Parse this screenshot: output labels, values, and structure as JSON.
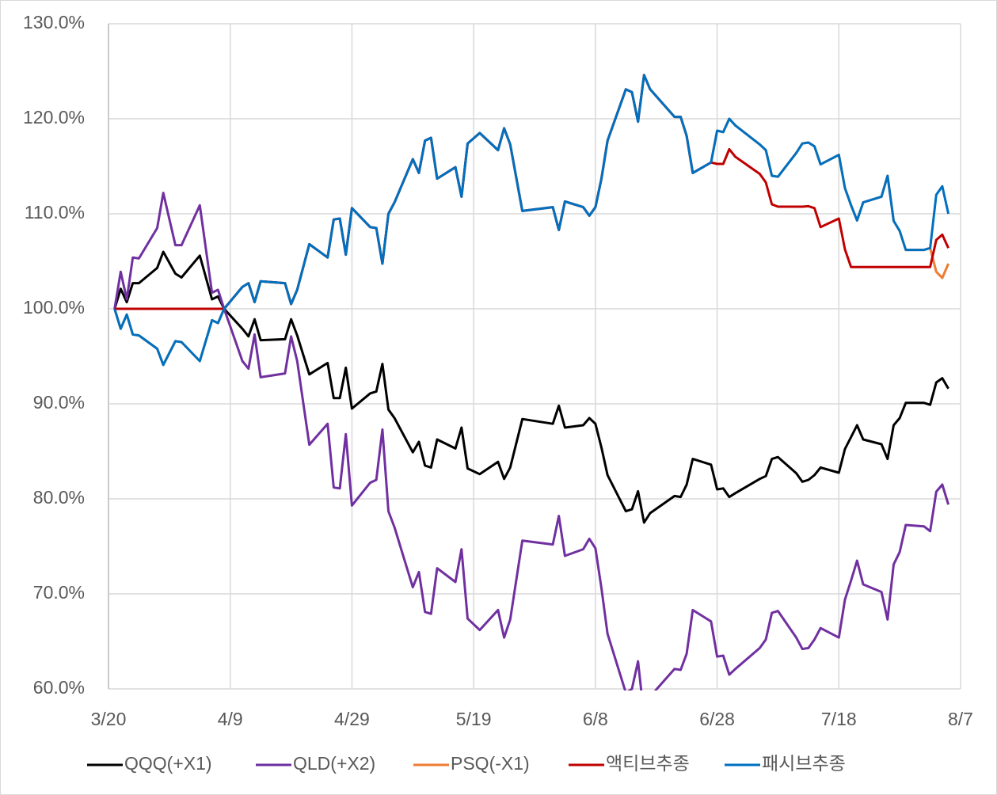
{
  "chart_data": {
    "type": "line",
    "x": [
      1,
      2,
      3,
      4,
      5,
      8,
      9,
      11,
      12,
      15,
      17,
      18,
      19,
      22,
      23,
      24,
      25,
      29,
      30,
      31,
      33,
      36,
      37,
      38,
      39,
      40,
      43,
      44,
      45,
      46,
      47,
      50,
      51,
      52,
      53,
      54,
      57,
      58,
      59,
      61,
      64,
      65,
      66,
      68,
      73,
      74,
      75,
      78,
      79,
      80,
      81,
      82,
      85,
      86,
      87,
      88,
      89,
      93,
      94,
      95,
      96,
      99,
      100,
      101,
      102,
      103,
      107,
      108,
      109,
      110,
      113,
      114,
      115,
      116,
      117,
      120,
      121,
      122,
      123,
      124,
      127,
      128,
      129,
      130,
      131,
      134,
      135,
      136,
      137,
      138
    ],
    "xlim": [
      0,
      140
    ],
    "xticks": [
      {
        "value": 0,
        "label": "3/20"
      },
      {
        "value": 20,
        "label": "4/9"
      },
      {
        "value": 40,
        "label": "4/29"
      },
      {
        "value": 60,
        "label": "5/19"
      },
      {
        "value": 80,
        "label": "6/8"
      },
      {
        "value": 100,
        "label": "6/28"
      },
      {
        "value": 120,
        "label": "7/18"
      },
      {
        "value": 140,
        "label": "8/7"
      }
    ],
    "ylim": [
      60,
      130
    ],
    "yticks": [
      {
        "value": 60,
        "label": "60.0%"
      },
      {
        "value": 70,
        "label": "70.0%"
      },
      {
        "value": 80,
        "label": "80.0%"
      },
      {
        "value": 90,
        "label": "90.0%"
      },
      {
        "value": 100,
        "label": "100.0%"
      },
      {
        "value": 110,
        "label": "110.0%"
      },
      {
        "value": 120,
        "label": "120.0%"
      },
      {
        "value": 130,
        "label": "130.0%"
      }
    ],
    "grid": true,
    "legend": "bottom",
    "series": [
      {
        "name": "QQQ(+X1)",
        "color": "#000000",
        "values": [
          100,
          102.1,
          100.7,
          102.7,
          102.7,
          104.3,
          106,
          103.7,
          103.3,
          105.6,
          101,
          101.3,
          100,
          97.9,
          97.1,
          98.9,
          96.7,
          96.8,
          98.9,
          97.2,
          93.1,
          94.3,
          90.6,
          90.6,
          93.8,
          89.5,
          91.1,
          91.3,
          94.2,
          89.4,
          88.5,
          84.9,
          86,
          83.5,
          83.3,
          86.25,
          85.3,
          87.5,
          83.2,
          82.6,
          83.9,
          82.1,
          83.3,
          88.4,
          87.9,
          89.8,
          87.5,
          87.75,
          88.5,
          87.9,
          85.4,
          82.5,
          78.7,
          78.9,
          80.8,
          77.5,
          78.5,
          80.3,
          80.2,
          81.5,
          84.2,
          83.6,
          81,
          81.1,
          80.2,
          80.6,
          82.1,
          82.4,
          84.2,
          84.4,
          82.7,
          81.8,
          82,
          82.5,
          83.3,
          82.75,
          85.25,
          86.5,
          87.75,
          86.25,
          85.75,
          84.2,
          87.75,
          88.5,
          90.1,
          90.1,
          89.9,
          92.25,
          92.7,
          91.6
        ]
      },
      {
        "name": "QLD(+X2)",
        "color": "#7030a0",
        "values": [
          100,
          103.9,
          101,
          105.4,
          105.3,
          108.5,
          112.2,
          106.7,
          106.7,
          110.9,
          101.7,
          102,
          100,
          94.5,
          93.7,
          97.3,
          92.8,
          93.2,
          97.1,
          94.5,
          85.7,
          87.9,
          81.2,
          81.1,
          86.8,
          79.3,
          81.7,
          82,
          87.3,
          78.7,
          77,
          70.7,
          72.3,
          68.1,
          67.9,
          72.7,
          71.25,
          74.7,
          67.4,
          66.2,
          68.3,
          65.4,
          67.3,
          75.6,
          75.2,
          78.2,
          74,
          74.7,
          75.8,
          74.8,
          70.6,
          65.8,
          59.6,
          60,
          62.9,
          57.1,
          59.2,
          62.1,
          62,
          63.7,
          68.3,
          67.1,
          63.4,
          63.5,
          61.5,
          62.1,
          64.3,
          65.2,
          68,
          68.2,
          65.4,
          64.2,
          64.3,
          65.2,
          66.4,
          65.4,
          69.4,
          71.4,
          73.5,
          71,
          70.2,
          67.3,
          73.1,
          74.4,
          77.25,
          77.1,
          76.6,
          80.75,
          81.5,
          79.4
        ]
      },
      {
        "name": "PSQ(-X1)",
        "color": "#ed7d31",
        "values": [
          100,
          97.9,
          99.4,
          97.3,
          97.2,
          95.8,
          94.1,
          96.6,
          96.5,
          94.5,
          98.8,
          98.5,
          100,
          102.3,
          102.7,
          100.7,
          102.9,
          102.7,
          100.5,
          102,
          106.8,
          105.4,
          109.4,
          109.5,
          105.7,
          110.6,
          108.6,
          108.5,
          104.75,
          110,
          111.2,
          115.75,
          114.3,
          117.7,
          118,
          113.7,
          114.9,
          111.8,
          117.4,
          118.5,
          116.7,
          119,
          117.3,
          110.3,
          110.7,
          108.3,
          111.3,
          110.7,
          109.8,
          110.7,
          113.7,
          117.7,
          123.1,
          122.8,
          119.7,
          124.6,
          123.1,
          120.2,
          120.2,
          118.2,
          114.3,
          115.4,
          118.75,
          118.6,
          120,
          119.3,
          117.3,
          116.7,
          114,
          113.9,
          116.4,
          117.4,
          117.5,
          117.1,
          115.2,
          116.2,
          112.7,
          110.9,
          109.3,
          111.2,
          111.8,
          114,
          109.25,
          108.2,
          106.2,
          106.2,
          106.4,
          103.9,
          103.25,
          104.75
        ]
      },
      {
        "name": "액티브추종",
        "color": "#c00000",
        "values": [
          100,
          100,
          100,
          100,
          100,
          100,
          100,
          100,
          100,
          100,
          100,
          100,
          100,
          102.3,
          102.7,
          100.7,
          102.9,
          102.7,
          100.5,
          102,
          106.8,
          105.4,
          109.4,
          109.5,
          105.7,
          110.6,
          108.6,
          108.5,
          104.75,
          110,
          111.2,
          115.75,
          114.3,
          117.7,
          118,
          113.7,
          114.9,
          111.8,
          117.4,
          118.5,
          116.7,
          119,
          117.3,
          110.3,
          110.7,
          108.3,
          111.3,
          110.7,
          109.8,
          110.7,
          113.7,
          117.7,
          123.1,
          122.8,
          119.7,
          124.6,
          123.1,
          120.2,
          120.2,
          118.2,
          114.3,
          115.4,
          115.25,
          115.25,
          116.8,
          116,
          114.2,
          113.3,
          111,
          110.75,
          110.75,
          110.75,
          110.8,
          110.6,
          108.6,
          109.5,
          106.25,
          104.4,
          104.4,
          104.4,
          104.4,
          104.4,
          104.4,
          104.4,
          104.4,
          104.4,
          104.4,
          107.25,
          107.8,
          106.4
        ]
      },
      {
        "name": "패시브추종",
        "color": "#0070c0",
        "values": [
          100,
          97.9,
          99.4,
          97.3,
          97.2,
          95.8,
          94.1,
          96.6,
          96.5,
          94.5,
          98.8,
          98.5,
          100,
          102.3,
          102.7,
          100.7,
          102.9,
          102.7,
          100.5,
          102,
          106.8,
          105.4,
          109.4,
          109.5,
          105.7,
          110.6,
          108.6,
          108.5,
          104.75,
          110,
          111.2,
          115.75,
          114.3,
          117.7,
          118,
          113.7,
          114.9,
          111.8,
          117.4,
          118.5,
          116.7,
          119,
          117.3,
          110.3,
          110.7,
          108.3,
          111.3,
          110.7,
          109.8,
          110.7,
          113.7,
          117.7,
          123.1,
          122.8,
          119.7,
          124.6,
          123.1,
          120.2,
          120.2,
          118.2,
          114.3,
          115.4,
          118.75,
          118.6,
          120,
          119.3,
          117.3,
          116.7,
          114,
          113.9,
          116.4,
          117.4,
          117.5,
          117.1,
          115.2,
          116.2,
          112.7,
          110.9,
          109.3,
          111.2,
          111.8,
          114,
          109.25,
          108.2,
          106.2,
          106.2,
          106.4,
          112,
          112.9,
          110
        ]
      }
    ]
  }
}
